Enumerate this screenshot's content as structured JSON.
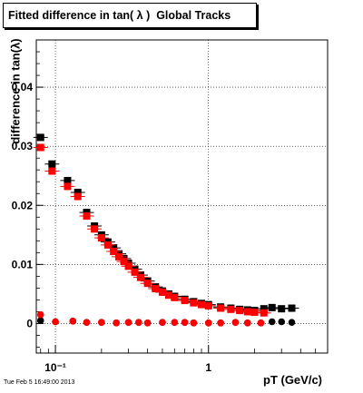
{
  "chart_data": {
    "type": "scatter",
    "title": "Fitted difference in tan( λ )  Global Tracks",
    "xlabel": "pT (GeV/c)",
    "ylabel": "difference in tan(λ)",
    "x_scale": "log",
    "xlim": [
      0.075,
      6.0
    ],
    "ylim": [
      -0.005,
      0.048
    ],
    "x_tick_labels": [
      "10⁻¹",
      "1"
    ],
    "y_ticks": [
      0,
      0.01,
      0.02,
      0.03,
      0.04
    ],
    "y_tick_labels": [
      "0",
      "0.01",
      "0.02",
      "0.03",
      "0.04"
    ],
    "grid": true,
    "series": [
      {
        "color": "#000000",
        "marker": "square",
        "x": [
          0.08,
          0.095,
          0.12,
          0.14,
          0.16,
          0.18,
          0.2,
          0.22,
          0.24,
          0.26,
          0.28,
          0.3,
          0.33,
          0.36,
          0.4,
          0.45,
          0.5,
          0.55,
          0.6,
          0.7,
          0.8,
          0.9,
          1.0,
          1.2,
          1.4,
          1.6,
          1.8,
          2.0,
          2.3,
          2.6,
          3.0,
          3.5
        ],
        "y": [
          0.0315,
          0.027,
          0.0242,
          0.0222,
          0.0188,
          0.0165,
          0.015,
          0.0138,
          0.0128,
          0.0118,
          0.011,
          0.0102,
          0.0092,
          0.0082,
          0.0072,
          0.0062,
          0.0055,
          0.005,
          0.0046,
          0.0041,
          0.0037,
          0.0034,
          0.0032,
          0.0028,
          0.0026,
          0.0024,
          0.0023,
          0.0022,
          0.0025,
          0.0027,
          0.0025,
          0.0026
        ]
      },
      {
        "color": "#000000",
        "marker": "circle",
        "x": [
          0.08,
          0.1,
          0.13,
          0.16,
          0.2,
          0.25,
          0.3,
          0.35,
          0.4,
          0.5,
          0.6,
          0.7,
          0.8,
          1.0,
          1.2,
          1.5,
          1.8,
          2.2,
          2.6,
          3.0,
          3.5
        ],
        "y": [
          0.0005,
          0.0003,
          0.0004,
          0.0002,
          0.0002,
          0.0001,
          0.0002,
          0.0002,
          0.0001,
          0.0002,
          0.0002,
          0.0002,
          0.0001,
          0.0001,
          0.0001,
          0.0002,
          0.0001,
          0.0001,
          0.0003,
          0.0003,
          0.0002
        ]
      },
      {
        "color": "#ff0000",
        "marker": "square",
        "x": [
          0.08,
          0.095,
          0.12,
          0.14,
          0.16,
          0.18,
          0.2,
          0.22,
          0.24,
          0.26,
          0.28,
          0.3,
          0.33,
          0.36,
          0.4,
          0.45,
          0.5,
          0.55,
          0.6,
          0.7,
          0.8,
          0.9,
          1.0,
          1.2,
          1.4,
          1.6,
          1.8,
          2.0,
          2.3
        ],
        "y": [
          0.0298,
          0.0258,
          0.0232,
          0.0215,
          0.0182,
          0.016,
          0.0145,
          0.0133,
          0.0122,
          0.0113,
          0.0105,
          0.0097,
          0.0087,
          0.0078,
          0.0068,
          0.0059,
          0.0053,
          0.0048,
          0.0044,
          0.0039,
          0.0035,
          0.0032,
          0.003,
          0.0026,
          0.0024,
          0.0022,
          0.002,
          0.0019,
          0.0018
        ]
      },
      {
        "color": "#ff0000",
        "marker": "circle",
        "x": [
          0.08,
          0.1,
          0.13,
          0.16,
          0.2,
          0.25,
          0.3,
          0.35,
          0.4,
          0.5,
          0.6,
          0.7,
          0.8,
          1.0,
          1.2,
          1.5,
          1.8,
          2.2
        ],
        "y": [
          0.0015,
          0.0003,
          0.0004,
          0.0002,
          0.0002,
          0.0001,
          0.0002,
          0.0002,
          0.0001,
          0.0002,
          0.0002,
          0.0002,
          0.0001,
          0.0001,
          0.0001,
          0.0002,
          0.0001,
          0.0001
        ]
      }
    ]
  },
  "footer": "Tue Feb  5 16:49:00 2013"
}
